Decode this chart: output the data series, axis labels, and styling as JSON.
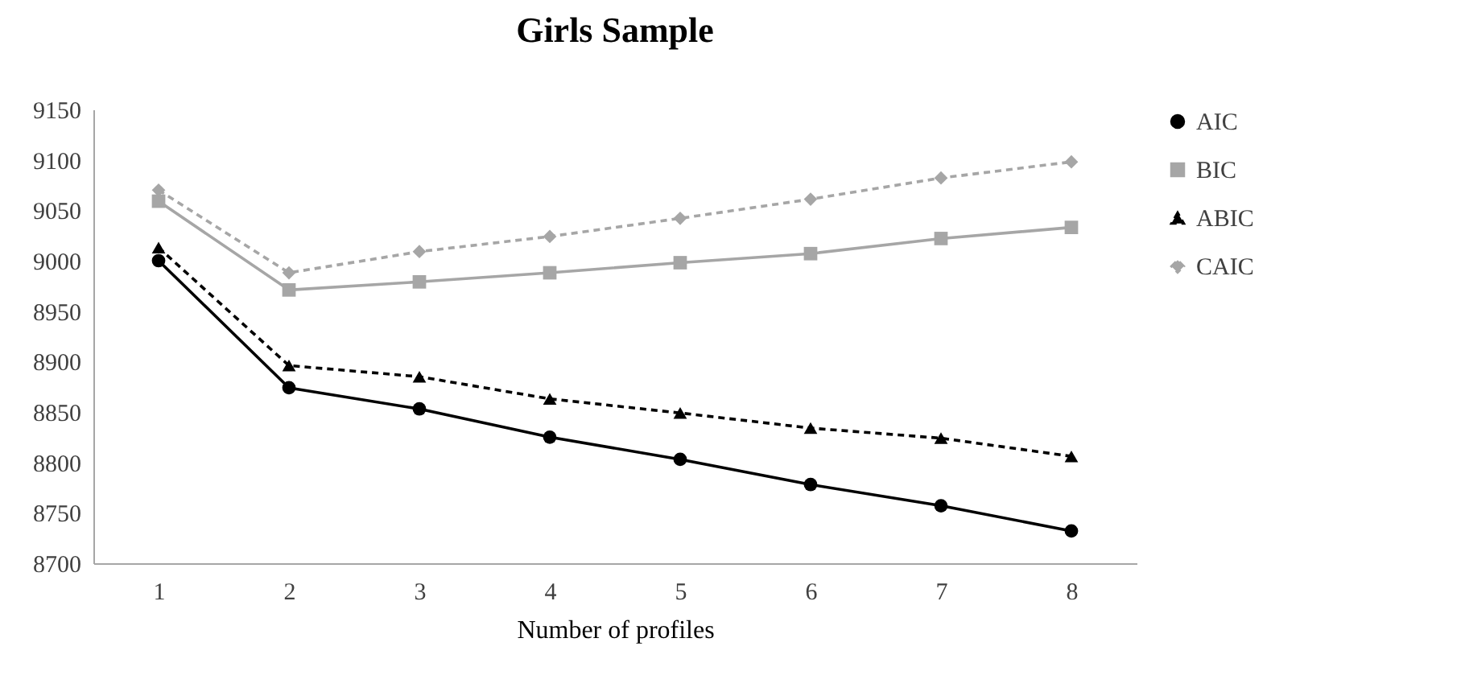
{
  "chart_data": {
    "type": "line",
    "title": "Girls Sample",
    "xlabel": "Number of profiles",
    "categories": [
      "1",
      "2",
      "3",
      "4",
      "5",
      "6",
      "7",
      "8"
    ],
    "ylim": [
      8700,
      9150
    ],
    "yticks": [
      8700,
      8750,
      8800,
      8850,
      8900,
      8950,
      9000,
      9050,
      9100,
      9150
    ],
    "grid": false,
    "legend": "right",
    "series": [
      {
        "name": "AIC",
        "color": "#000000",
        "marker": "circle",
        "line_style": "solid",
        "values": [
          9000,
          8874,
          8853,
          8825,
          8803,
          8778,
          8757,
          8732
        ]
      },
      {
        "name": "BIC",
        "color": "#a6a6a6",
        "marker": "square",
        "line_style": "solid",
        "values": [
          9059,
          8971,
          8979,
          8988,
          8998,
          9007,
          9022,
          9033
        ]
      },
      {
        "name": "ABIC",
        "color": "#000000",
        "marker": "triangle",
        "line_style": "dashed",
        "values": [
          9013,
          8896,
          8885,
          8863,
          8849,
          8834,
          8824,
          8806
        ]
      },
      {
        "name": "CAIC",
        "color": "#a6a6a6",
        "marker": "diamond",
        "line_style": "dashed",
        "values": [
          9070,
          8988,
          9009,
          9024,
          9042,
          9061,
          9082,
          9098
        ]
      }
    ]
  }
}
